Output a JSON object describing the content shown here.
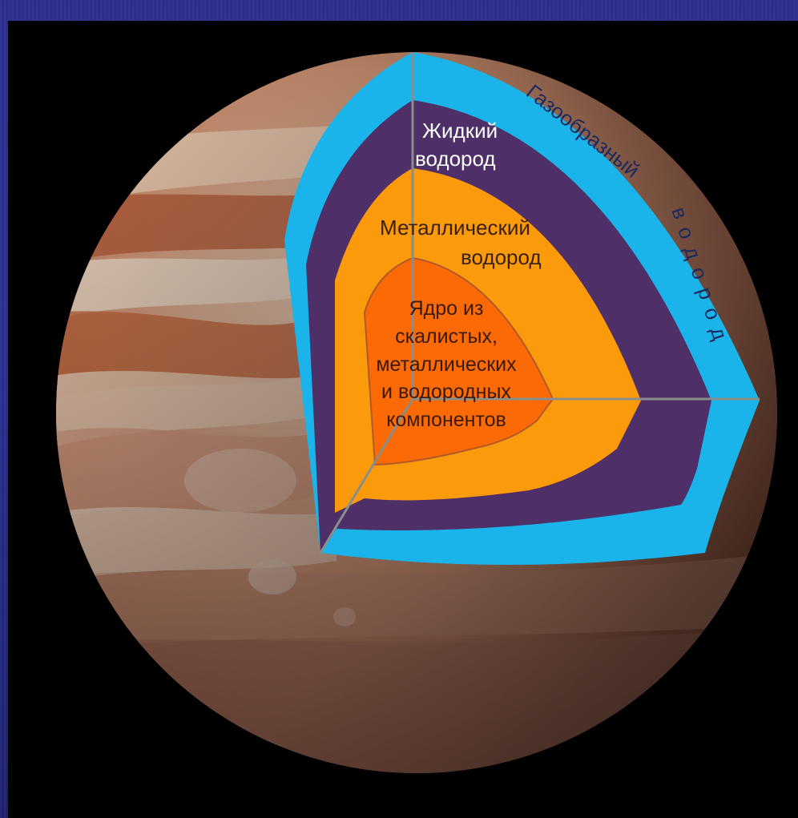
{
  "diagram": {
    "layers": [
      {
        "id": "gaseous",
        "label_lines": [
          "Газообразный",
          "водород"
        ],
        "color": "#1ab4ea"
      },
      {
        "id": "liquid",
        "label_lines": [
          "Жидкий",
          "водород"
        ],
        "color": "#4f2f67"
      },
      {
        "id": "metallic",
        "label_lines": [
          "Металлический",
          "водород"
        ],
        "color": "#fb9a0a"
      },
      {
        "id": "core",
        "label_lines": [
          "Ядро из",
          "скалистых,",
          "металлических",
          "и водородных",
          "компонентов"
        ],
        "color": "#fc6a05"
      }
    ]
  }
}
